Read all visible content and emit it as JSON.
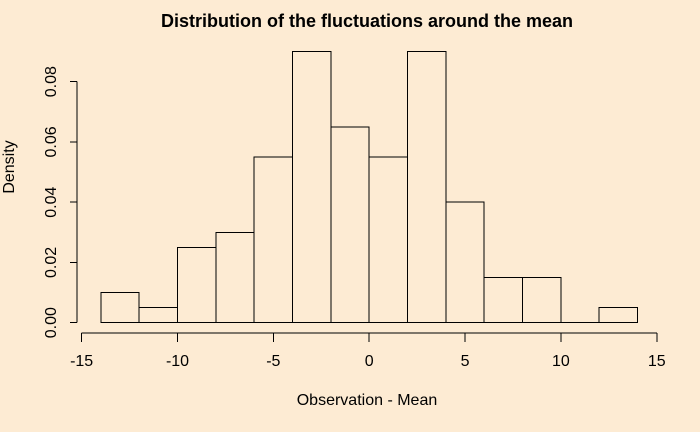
{
  "chart_data": {
    "type": "bar",
    "chart_kind": "histogram",
    "title": "Distribution of the fluctuations around the mean",
    "xlabel": "Observation - Mean",
    "ylabel": "Density",
    "x_ticks": [
      -15,
      -10,
      -5,
      0,
      5,
      10,
      15
    ],
    "x_tick_labels": [
      "-15",
      "-10",
      "-5",
      "0",
      "5",
      "10",
      "15"
    ],
    "y_ticks": [
      0,
      0.02,
      0.04,
      0.06,
      0.08
    ],
    "y_tick_labels": [
      "0.00",
      "0.02",
      "0.04",
      "0.06",
      "0.08"
    ],
    "x_axis_range": [
      -15,
      15
    ],
    "y_axis_range": [
      0,
      0.08
    ],
    "ylim_max_bar": 0.09,
    "bin_width": 2,
    "bins": [
      {
        "from": -14,
        "to": -12,
        "density": 0.01
      },
      {
        "from": -12,
        "to": -10,
        "density": 0.005
      },
      {
        "from": -10,
        "to": -8,
        "density": 0.025
      },
      {
        "from": -8,
        "to": -6,
        "density": 0.03
      },
      {
        "from": -6,
        "to": -4,
        "density": 0.055
      },
      {
        "from": -4,
        "to": -2,
        "density": 0.09
      },
      {
        "from": -2,
        "to": 0,
        "density": 0.065
      },
      {
        "from": 0,
        "to": 2,
        "density": 0.055
      },
      {
        "from": 2,
        "to": 4,
        "density": 0.09
      },
      {
        "from": 4,
        "to": 6,
        "density": 0.04
      },
      {
        "from": 6,
        "to": 8,
        "density": 0.015
      },
      {
        "from": 8,
        "to": 10,
        "density": 0.015
      },
      {
        "from": 10,
        "to": 12,
        "density": 0.0
      },
      {
        "from": 12,
        "to": 14,
        "density": 0.005
      }
    ],
    "grid": false,
    "legend": false,
    "colors": {
      "background": "#FDEBD3",
      "foreground": "#000000",
      "bar_fill": "#FDEBD3",
      "bar_border": "#000000"
    }
  }
}
